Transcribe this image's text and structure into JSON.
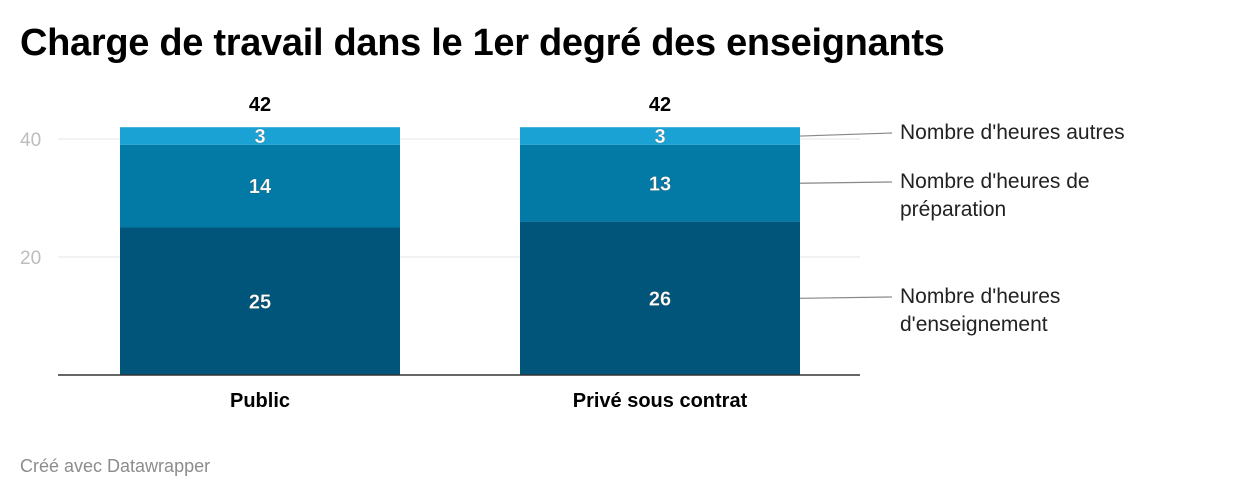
{
  "title": "Charge de travail dans le 1er degré des enseignants",
  "footer": "Créé avec Datawrapper",
  "colors": {
    "enseignement": "#01557a",
    "preparation": "#037aa6",
    "autres": "#1ba2d4",
    "gridline": "#e6e6e6",
    "axis_text": "#bdbdbd",
    "baseline": "#333333",
    "connector": "#888888"
  },
  "chart_data": {
    "type": "bar",
    "stacked": true,
    "title": "Charge de travail dans le 1er degré des enseignants",
    "categories": [
      "Public",
      "Privé sous contrat"
    ],
    "series": [
      {
        "name": "Nombre d'heures d'enseignement",
        "color_key": "enseignement",
        "values": [
          25,
          26
        ]
      },
      {
        "name": "Nombre d'heures de préparation",
        "color_key": "preparation",
        "values": [
          14,
          13
        ]
      },
      {
        "name": "Nombre d'heures autres",
        "color_key": "autres",
        "values": [
          3,
          3
        ]
      }
    ],
    "totals": [
      42,
      42
    ],
    "ylim": [
      0,
      42
    ],
    "yticks": [
      20,
      40
    ],
    "grid": true,
    "legend": "right"
  }
}
